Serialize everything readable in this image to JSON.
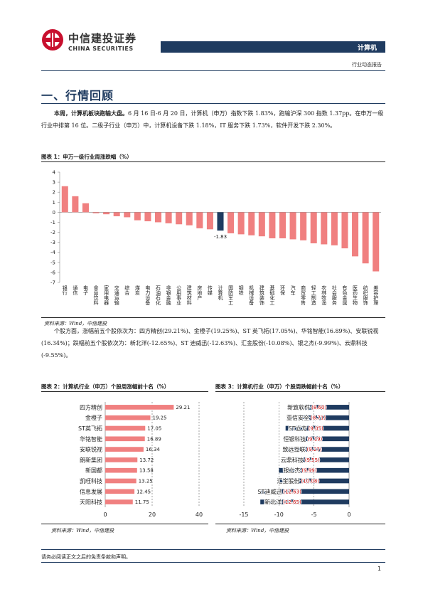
{
  "header": {
    "logo_cn": "中信建投证券",
    "logo_en": "CHINA SECURITIES",
    "industry": "计算机",
    "report_type": "行业动态报告"
  },
  "section": {
    "title": "一、行情回顾"
  },
  "para1": {
    "lead": "本周，计算机板块跑输大盘。",
    "body": "6 月 16 日-6 月 20 日，计算机（申万）指数下跌 1.83%，跑输沪深 300 指数 1.37pp。在申万一级行业中排第 16 位。二级子行业（申万）中，计算机设备下跌 1.18%，IT 服务下跌 1.73%，软件开发下跌 2.30%。"
  },
  "para2": {
    "body": "个股方面，涨幅前五个股依次为：四方精创(29.21%)、金橙子(19.25%)、ST 英飞拓(17.05%)、华铭智能(16.89%)、安联锐视(16.34%)；跌幅前五个股依次为：新北洋(-12.65%)、ST 迪威迅(-12.63%)、汇金股份(-10.08%)、银之杰(-9.99%)、云鼎科技(-9.55%)。"
  },
  "figure1": {
    "title": "图表 1：申万一级行业周涨跌幅（%）",
    "source": "资料来源：Wind，中信建投"
  },
  "figure2": {
    "title": "图表 2：计算机行业（申万）个股周涨幅前十名（%）",
    "source": "资料来源：Wind，中信建投"
  },
  "figure3": {
    "title": "图表 3：计算机行业（申万）个股周跌幅前十名（%）",
    "source": "资料来源：Wind，中信建投"
  },
  "footer": {
    "disclaimer": "请务必阅读正文之后的免责条款和声明。",
    "page": "1"
  },
  "colors": {
    "brand_navy": "#1f3b60",
    "logo_red": "#c8102e",
    "bar_pink": "#f08080",
    "bar_navy": "#1f3b60",
    "label_red": "#c00000"
  },
  "chart_data": [
    {
      "type": "bar",
      "categories": [
        "银行",
        "通信",
        "电子",
        "食品饮料",
        "家用电器",
        "交通运输",
        "综合",
        "煤炭",
        "电力设备",
        "石油石化",
        "非银金融",
        "公用事业",
        "建筑材料",
        "房地产",
        "传媒",
        "计算机",
        "国防军工",
        "钢铁",
        "机械设备",
        "建筑装饰",
        "基础化工",
        "环保",
        "汽车",
        "商贸零售",
        "轻工制造",
        "农林牧渔",
        "社会服务",
        "有色金属",
        "医药生物",
        "纺织服饰",
        "美容护理"
      ],
      "values": [
        2.6,
        1.6,
        0.9,
        -0.1,
        -0.2,
        -0.4,
        -0.5,
        -0.8,
        -0.9,
        -1.0,
        -1.1,
        -1.2,
        -1.3,
        -1.6,
        -1.7,
        -1.83,
        -2.1,
        -2.2,
        -2.3,
        -2.4,
        -2.6,
        -2.6,
        -2.7,
        -2.8,
        -3.1,
        -3.2,
        -3.3,
        -3.6,
        -4.4,
        -5.1,
        -5.9
      ],
      "highlight": "计算机",
      "data_labels": [
        {
          "category": "计算机",
          "text": "-1.83"
        }
      ],
      "ylim": [
        -7,
        4
      ],
      "yticks": [
        4,
        3,
        2,
        1,
        0,
        -1,
        -2,
        -3,
        -4,
        -5,
        -6,
        -7
      ],
      "grid": false
    },
    {
      "type": "bar",
      "orientation": "horizontal",
      "categories": [
        "四方精创",
        "金橙子",
        "ST英飞拓",
        "华铭智能",
        "安联锐视",
        "朗新集团",
        "新国都",
        "凯旺科技",
        "信息发展",
        "天阳科技"
      ],
      "values": [
        29.21,
        19.25,
        17.05,
        16.89,
        16.34,
        13.72,
        13.58,
        13.25,
        12.45,
        11.75
      ],
      "data_labels": [
        "29.21",
        "19.25",
        "17.05",
        "16.89",
        "16.34",
        "13.72",
        "13.58",
        "13.25",
        "12.45",
        "11.75"
      ],
      "xlim": [
        0,
        40
      ],
      "xticks": [
        0,
        20,
        40
      ],
      "grid": true
    },
    {
      "type": "bar",
      "orientation": "horizontal",
      "categories": [
        "新致软件",
        "亚信安全",
        "ST立方",
        "恒银科技",
        "致远互联",
        "云鼎科技",
        "银之杰",
        "汇金股份",
        "ST迪威迅",
        "新北洋"
      ],
      "values": [
        -8.6,
        -8.71,
        -9.05,
        -9.19,
        -9.27,
        -9.55,
        -9.99,
        -10.08,
        -12.63,
        -12.65
      ],
      "data_labels": [
        "(8.60)",
        "(8.71)",
        "(9.05)",
        "(9.19)",
        "(9.27)",
        "(9.55)",
        "(9.99)",
        "(10.08)",
        "(12.63)",
        "(12.65)"
      ],
      "xlim": [
        -15,
        0
      ],
      "xticks": [
        -15,
        -10,
        -5,
        0
      ],
      "grid": true
    }
  ]
}
